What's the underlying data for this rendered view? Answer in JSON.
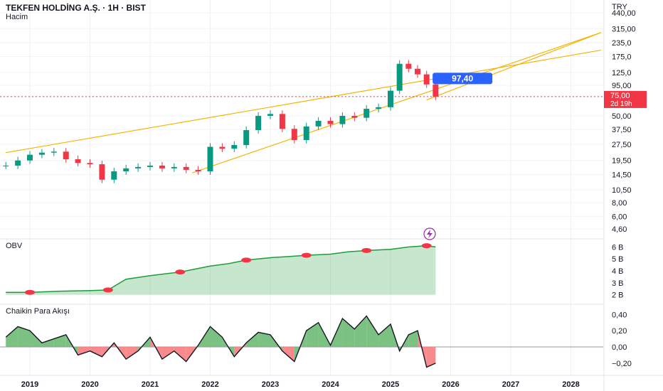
{
  "header": {
    "title": "TEKFEN HOLDİNG A.Ş. · 1H · BIST",
    "volume_label": "Hacim",
    "currency": "TRY"
  },
  "panes": {
    "obv_label": "OBV",
    "cmf_label": "Chaikin Para Akışı"
  },
  "price_badge": {
    "value": "75,00",
    "countdown": "2d 19h",
    "color": "#f23645"
  },
  "callout": {
    "value": "97,40",
    "color": "#2962ff"
  },
  "colors": {
    "up": "#089981",
    "down": "#f23645",
    "trendline": "#f5b300",
    "obv_green": "#1e9c3b",
    "cmf_pos": "#6dbb74",
    "cmf_neg": "#f77c80"
  },
  "icons": {
    "flash": "lightning-icon"
  },
  "chart_data": [
    {
      "type": "candlestick",
      "title": "TEKFEN HOLDİNG A.Ş. · 1H · BIST",
      "scale": "log",
      "y_ticks": [
        "440,00",
        "315,00",
        "235,0",
        "175,0",
        "125,0",
        "95,00",
        "75,00",
        "50,00",
        "37,50",
        "27,50",
        "19,50",
        "14,50",
        "10,50",
        "8,00",
        "6,00",
        "4,60"
      ],
      "x_ticks": [
        "2019",
        "2020",
        "2021",
        "2022",
        "2023",
        "2024",
        "2025",
        "2026",
        "2027",
        "2028"
      ],
      "x": [
        2018.6,
        2018.8,
        2019.0,
        2019.2,
        2019.4,
        2019.6,
        2019.8,
        2020.0,
        2020.2,
        2020.4,
        2020.6,
        2020.8,
        2021.0,
        2021.2,
        2021.4,
        2021.6,
        2021.8,
        2022.0,
        2022.2,
        2022.4,
        2022.6,
        2022.8,
        2023.0,
        2023.2,
        2023.4,
        2023.6,
        2023.8,
        2024.0,
        2024.2,
        2024.4,
        2024.6,
        2024.8,
        2025.0,
        2025.15,
        2025.3,
        2025.45,
        2025.6,
        2025.75
      ],
      "close": [
        17.5,
        19.5,
        22.0,
        23.0,
        23.5,
        20.0,
        18.5,
        18.0,
        13.0,
        15.5,
        16.5,
        17.0,
        17.5,
        16.5,
        17.0,
        16.0,
        15.5,
        26.0,
        25.0,
        27.0,
        37.0,
        50.0,
        52.0,
        38.0,
        30.0,
        40.0,
        45.0,
        42.0,
        50.0,
        48.0,
        58.0,
        60.0,
        85.0,
        150.0,
        135.0,
        120.0,
        97.0,
        75.0
      ],
      "series_name": "TEKFEN HOLDİNG A.Ş.",
      "trendlines": [
        {
          "name": "upper",
          "points": [
            [
              2018.6,
              23.0
            ],
            [
              2028.5,
              200.0
            ]
          ]
        },
        {
          "name": "lower",
          "points": [
            [
              2021.7,
              15.0
            ],
            [
              2028.5,
              290.0
            ]
          ]
        },
        {
          "name": "secondary",
          "points": [
            [
              2025.6,
              70.0
            ],
            [
              2028.5,
              290.0
            ]
          ]
        }
      ],
      "annotations": [
        "97,40"
      ],
      "last_price": "75,00"
    },
    {
      "type": "area",
      "title": "OBV",
      "y_ticks": [
        "6 B",
        "5 B",
        "4 B",
        "3 B",
        "2 B"
      ],
      "x": [
        2018.6,
        2019.0,
        2019.5,
        2020.0,
        2020.3,
        2020.6,
        2021.0,
        2021.5,
        2022.0,
        2022.3,
        2022.6,
        2023.0,
        2023.3,
        2023.6,
        2024.0,
        2024.3,
        2024.6,
        2025.0,
        2025.3,
        2025.6,
        2025.75
      ],
      "values": [
        2.2,
        2.2,
        2.3,
        2.35,
        2.4,
        3.3,
        3.6,
        3.9,
        4.4,
        4.6,
        4.9,
        5.1,
        5.2,
        5.3,
        5.4,
        5.6,
        5.7,
        5.8,
        6.0,
        6.1,
        6.0
      ]
    },
    {
      "type": "area",
      "title": "Chaikin Para Akışı",
      "y_ticks": [
        "0,40",
        "0,20",
        "0,00",
        "−0,20"
      ],
      "x": [
        2018.6,
        2018.8,
        2019.0,
        2019.2,
        2019.4,
        2019.6,
        2019.8,
        2020.0,
        2020.2,
        2020.4,
        2020.6,
        2020.8,
        2021.0,
        2021.2,
        2021.4,
        2021.6,
        2021.8,
        2022.0,
        2022.2,
        2022.4,
        2022.6,
        2022.8,
        2023.0,
        2023.2,
        2023.4,
        2023.6,
        2023.8,
        2024.0,
        2024.2,
        2024.4,
        2024.6,
        2024.8,
        2025.0,
        2025.15,
        2025.3,
        2025.45,
        2025.6,
        2025.75
      ],
      "values": [
        0.12,
        0.25,
        0.2,
        0.05,
        0.1,
        0.15,
        -0.1,
        -0.05,
        -0.12,
        0.05,
        -0.15,
        -0.05,
        0.12,
        -0.15,
        -0.05,
        -0.18,
        0.02,
        0.25,
        0.12,
        -0.12,
        0.05,
        0.18,
        0.15,
        -0.05,
        -0.18,
        0.2,
        0.3,
        0.02,
        0.35,
        0.22,
        0.38,
        0.15,
        0.28,
        -0.05,
        0.15,
        0.2,
        -0.25,
        -0.2
      ]
    }
  ]
}
